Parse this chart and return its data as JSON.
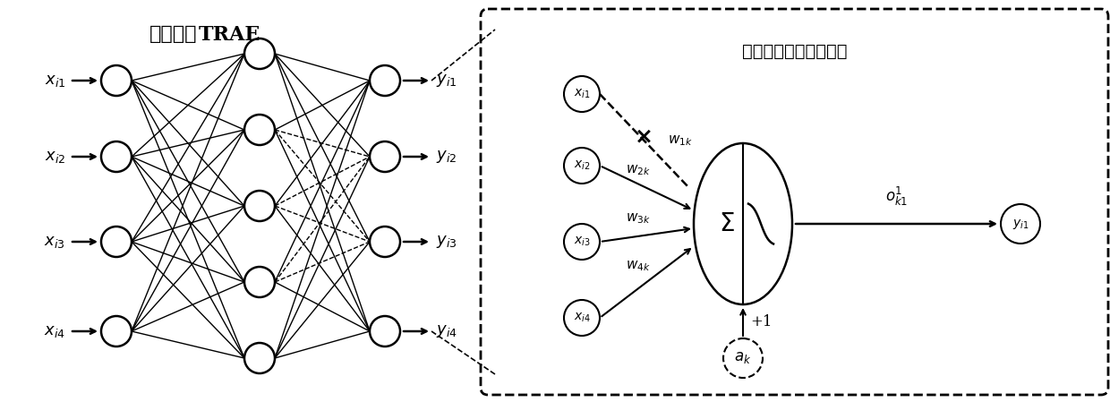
{
  "bg_color": "#ffffff",
  "title_chinese": "网络模型",
  "title_bold": "TRAE",
  "subtitle": "隐藏层节点的计算规则",
  "input_labels": [
    "$x_{i1}$",
    "$x_{i2}$",
    "$x_{i3}$",
    "$x_{i4}$"
  ],
  "output_labels": [
    "$y_{i1}$",
    "$y_{i2}$",
    "$y_{i3}$",
    "$y_{i4}$"
  ],
  "right_input_labels": [
    "$x_{i1}$",
    "$x_{i2}$",
    "$x_{i3}$",
    "$x_{i4}$"
  ],
  "weight_labels": [
    "$w_{1k}$",
    "$w_{2k}$",
    "$w_{3k}$",
    "$w_{4k}$"
  ],
  "ok1_label": "$o_{k1}^{1}$",
  "yi1_label": "$y_{i1}$",
  "ak_label": "$a_k$",
  "plus1_label": "+1"
}
